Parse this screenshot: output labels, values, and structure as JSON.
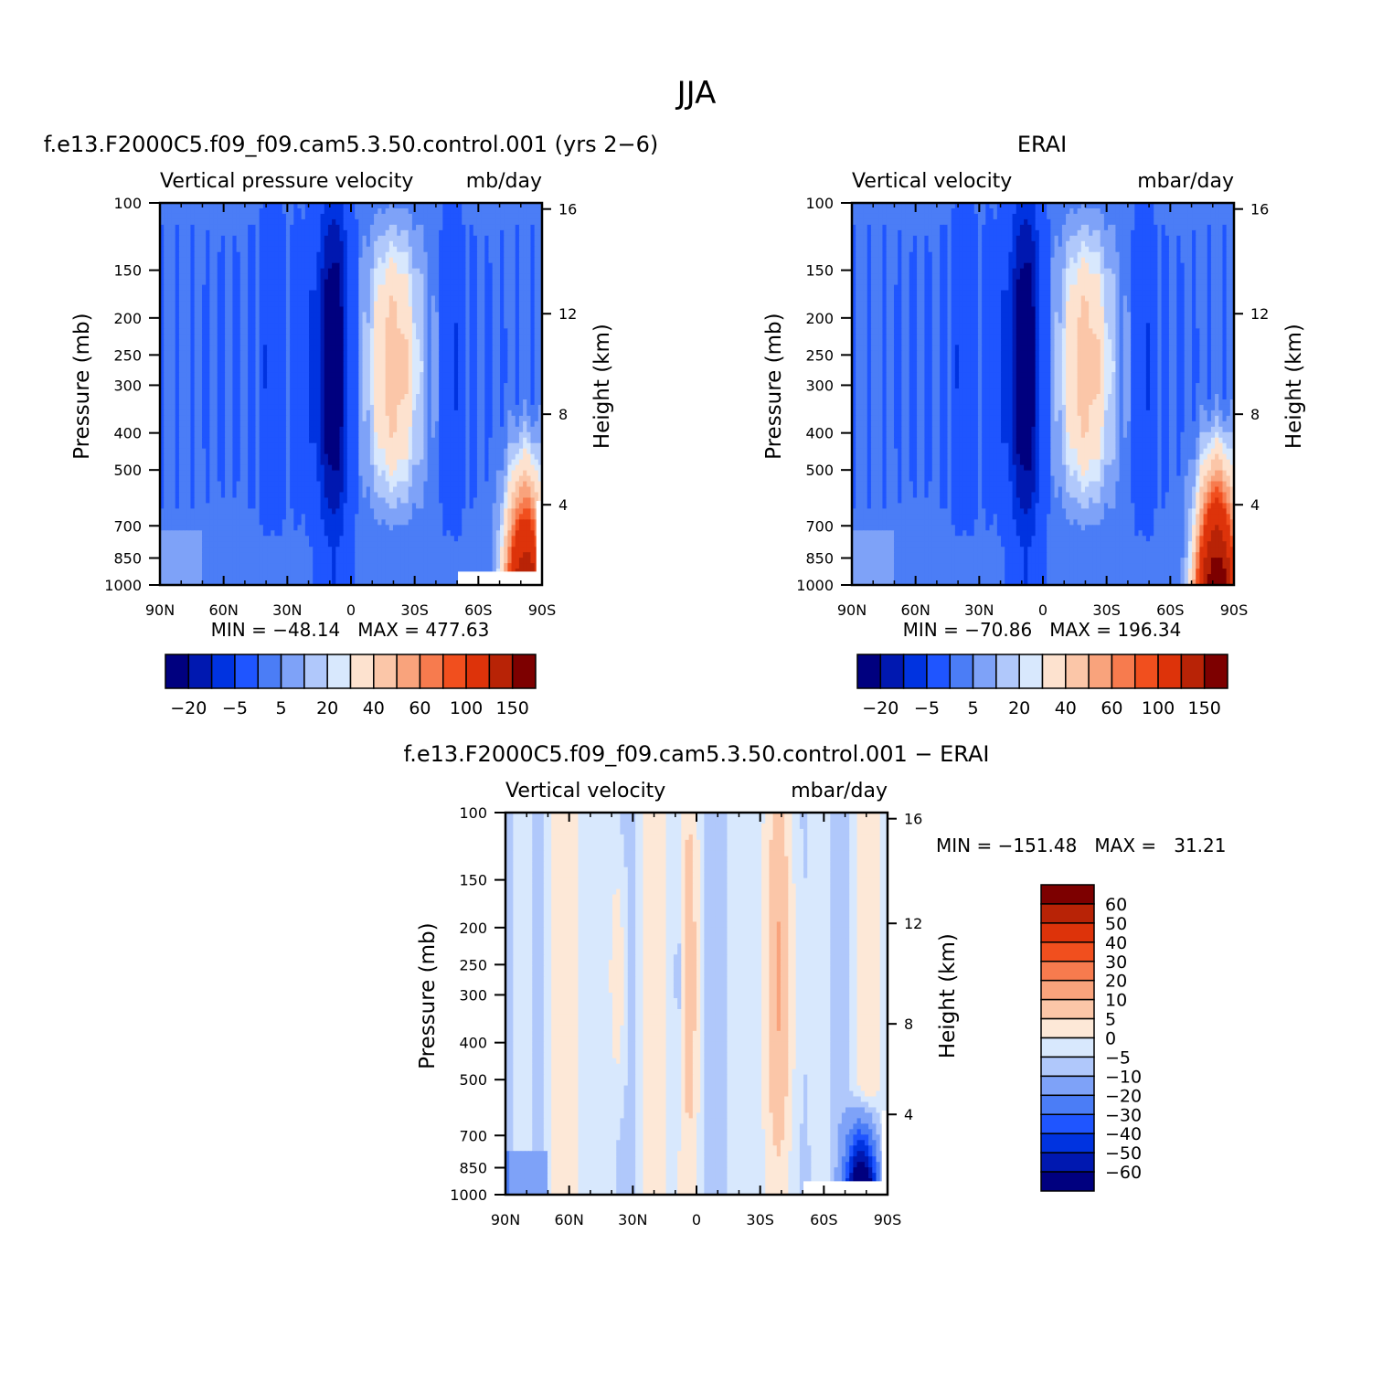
{
  "figure_title": "JJA",
  "chart_data": [
    {
      "type": "heatmap",
      "case_title": "f.e13.F2000C5.f09_f09.cam5.3.50.control.001 (yrs 2−6)",
      "left_label": "Vertical pressure velocity",
      "right_label": "mb/day",
      "ylabel": "Pressure (mb)",
      "ylabel_right": "Height (km)",
      "x_tick_labels": [
        "90N",
        "60N",
        "30N",
        "0",
        "30S",
        "60S",
        "90S"
      ],
      "y_tick_labels": [
        "100",
        "150",
        "200",
        "250",
        "300",
        "400",
        "500",
        "700",
        "850",
        "1000"
      ],
      "height_tick_labels": [
        "16",
        "12",
        "8",
        "4"
      ],
      "min_max_text": "MIN = −48.14   MAX = 477.63",
      "xlim": [
        90,
        -90
      ],
      "ylim": [
        1000,
        100
      ],
      "colorbar": {
        "orientation": "horizontal",
        "labels": [
          "−20",
          "−5",
          "5",
          "20",
          "40",
          "60",
          "100",
          "150"
        ]
      }
    },
    {
      "type": "heatmap",
      "case_title": "ERAI",
      "left_label": "Vertical velocity",
      "right_label": "mbar/day",
      "ylabel": "Pressure (mb)",
      "ylabel_right": "Height (km)",
      "x_tick_labels": [
        "90N",
        "60N",
        "30N",
        "0",
        "30S",
        "60S",
        "90S"
      ],
      "y_tick_labels": [
        "100",
        "150",
        "200",
        "250",
        "300",
        "400",
        "500",
        "700",
        "850",
        "1000"
      ],
      "height_tick_labels": [
        "16",
        "12",
        "8",
        "4"
      ],
      "min_max_text": "MIN = −70.86   MAX = 196.34",
      "xlim": [
        90,
        -90
      ],
      "ylim": [
        1000,
        100
      ],
      "colorbar": {
        "orientation": "horizontal",
        "labels": [
          "−20",
          "−5",
          "5",
          "20",
          "40",
          "60",
          "100",
          "150"
        ]
      }
    },
    {
      "type": "heatmap",
      "case_title": "f.e13.F2000C5.f09_f09.cam5.3.50.control.001 − ERAI",
      "left_label": "Vertical velocity",
      "right_label": "mbar/day",
      "ylabel": "Pressure (mb)",
      "ylabel_right": "Height (km)",
      "x_tick_labels": [
        "90N",
        "60N",
        "30N",
        "0",
        "30S",
        "60S",
        "90S"
      ],
      "y_tick_labels": [
        "100",
        "150",
        "200",
        "250",
        "300",
        "400",
        "500",
        "700",
        "850",
        "1000"
      ],
      "height_tick_labels": [
        "16",
        "12",
        "8",
        "4"
      ],
      "min_max_text": "MIN = −151.48   MAX =   31.21",
      "xlim": [
        90,
        -90
      ],
      "ylim": [
        1000,
        100
      ],
      "colorbar": {
        "orientation": "vertical",
        "labels": [
          "60",
          "50",
          "40",
          "30",
          "20",
          "10",
          "5",
          "0",
          "−5",
          "−10",
          "−20",
          "−30",
          "−40",
          "−50",
          "−60"
        ]
      }
    }
  ],
  "colors": {
    "main_scale": [
      "#00007f",
      "#0018b0",
      "#0033e0",
      "#1f55ff",
      "#4b7df6",
      "#7ea2f8",
      "#b0c8fb",
      "#d8e8fd",
      "#fde2cf",
      "#fbc6a8",
      "#f9a37c",
      "#f77b4e",
      "#f14f1e",
      "#dd330a",
      "#b82306",
      "#7d0000"
    ],
    "diff_scale": [
      "#7d0000",
      "#b82306",
      "#dd330a",
      "#f14f1e",
      "#f77b4e",
      "#f9a37c",
      "#fbc6a8",
      "#fde8d7",
      "#d8e8fd",
      "#b0c8fb",
      "#7ea2f8",
      "#4b7df6",
      "#1f55ff",
      "#0033e0",
      "#0018b0",
      "#00007f"
    ]
  }
}
